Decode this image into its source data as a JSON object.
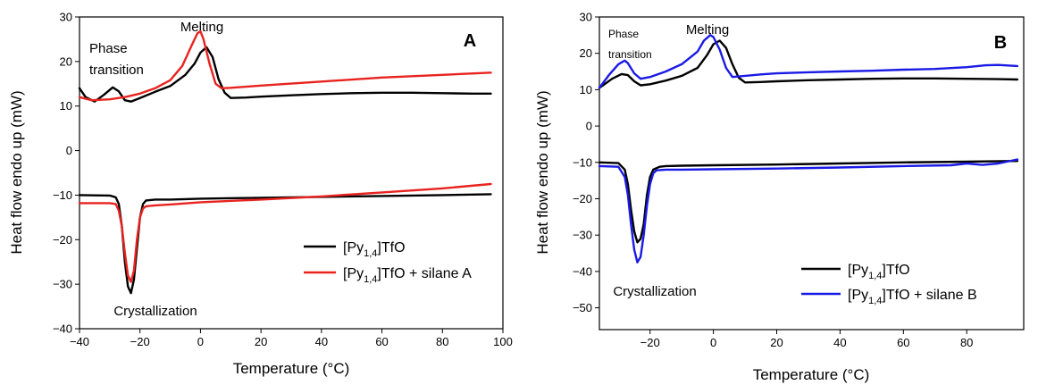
{
  "chart_data": [
    {
      "type": "line",
      "panel_label": "A",
      "xlabel": "Temperature (°C)",
      "ylabel": "Heat flow endo up (mW)",
      "xlim": [
        -40,
        100
      ],
      "ylim": [
        -40,
        30
      ],
      "xticks": [
        -40,
        -20,
        0,
        20,
        40,
        60,
        80,
        100
      ],
      "yticks": [
        -40,
        -30,
        -20,
        -10,
        0,
        10,
        20,
        30
      ],
      "annotations": [
        "Phase",
        "transition",
        "Melting",
        "Crystallization"
      ],
      "legend_position": "bottom-right",
      "series": [
        {
          "name": "[Py1,4]TfO",
          "legend_main": "[Py",
          "legend_sub": "1,4",
          "legend_rest": "]TfO",
          "color": "#000000",
          "segments": [
            {
              "x": [
                -40,
                -38,
                -35,
                -32,
                -29,
                -27,
                -25,
                -23,
                -20,
                -15,
                -10,
                -5,
                -2,
                0,
                2,
                4,
                6,
                8,
                10,
                15,
                20,
                30,
                40,
                50,
                60,
                70,
                80,
                90,
                96
              ],
              "y": [
                14,
                12,
                11,
                12.5,
                14.2,
                13.3,
                11.3,
                11,
                11.8,
                13.2,
                14.5,
                17,
                19.5,
                22,
                23.2,
                21,
                16,
                13,
                11.8,
                11.9,
                12.1,
                12.4,
                12.7,
                12.9,
                13,
                13,
                12.9,
                12.8,
                12.8
              ]
            },
            {
              "x": [
                -40,
                -30,
                -28,
                -27,
                -26,
                -25,
                -24,
                -23,
                -22,
                -21,
                -20,
                -19,
                -18,
                -15,
                -10,
                0,
                20,
                40,
                60,
                80,
                96
              ],
              "y": [
                -10,
                -10.1,
                -10.5,
                -12,
                -17,
                -25,
                -30.5,
                -32,
                -29,
                -22,
                -15,
                -12,
                -11.2,
                -11,
                -11,
                -10.8,
                -10.6,
                -10.4,
                -10.2,
                -10,
                -9.8
              ]
            }
          ]
        },
        {
          "name": "[Py1,4]TfO + silane A",
          "legend_main": "[Py",
          "legend_sub": "1,4",
          "legend_rest": "]TfO + silane A",
          "color": "#e8231f",
          "segments": [
            {
              "x": [
                -40,
                -36,
                -30,
                -25,
                -20,
                -15,
                -10,
                -6,
                -3,
                -1,
                0,
                1,
                3,
                5,
                7,
                10,
                20,
                40,
                60,
                80,
                96
              ],
              "y": [
                12,
                11.3,
                11.5,
                12,
                12.8,
                14,
                15.8,
                19,
                23.5,
                26.3,
                26.8,
                25,
                19.5,
                15,
                14,
                14.1,
                14.6,
                15.5,
                16.4,
                17,
                17.5
              ]
            },
            {
              "x": [
                -40,
                -30,
                -28,
                -27,
                -26,
                -25,
                -24,
                -23,
                -22,
                -21,
                -20,
                -19,
                -18,
                -15,
                -10,
                0,
                20,
                40,
                60,
                80,
                96
              ],
              "y": [
                -11.8,
                -11.8,
                -12,
                -13.5,
                -17,
                -23,
                -28,
                -29.5,
                -27,
                -20,
                -15,
                -13,
                -12.5,
                -12.3,
                -12.1,
                -11.6,
                -11,
                -10.3,
                -9.4,
                -8.5,
                -7.5
              ]
            }
          ]
        }
      ]
    },
    {
      "type": "line",
      "panel_label": "B",
      "xlabel": "Temperature (°C)",
      "ylabel": "Heat flow endo up (mW)",
      "xlim": [
        -36,
        98
      ],
      "ylim": [
        -56,
        30
      ],
      "xticks": [
        -20,
        0,
        20,
        40,
        60,
        80
      ],
      "yticks": [
        -50,
        -40,
        -30,
        -20,
        -10,
        0,
        10,
        20,
        30
      ],
      "annotations": [
        "Phase",
        "transition",
        "Melting",
        "Crystallization"
      ],
      "legend_position": "bottom-right",
      "series": [
        {
          "name": "[Py1,4]TfO",
          "legend_main": "[Py",
          "legend_sub": "1,4",
          "legend_rest": "]TfO",
          "color": "#000000",
          "segments": [
            {
              "x": [
                -36,
                -32,
                -29,
                -27,
                -25,
                -23,
                -20,
                -15,
                -10,
                -5,
                -2,
                0,
                2,
                4,
                6,
                8,
                10,
                15,
                20,
                30,
                40,
                50,
                60,
                70,
                80,
                90,
                96
              ],
              "y": [
                10.5,
                13,
                14.3,
                14,
                12.3,
                11.2,
                11.5,
                12.5,
                13.8,
                16,
                19.5,
                22.5,
                23.5,
                21.5,
                17,
                13.3,
                12,
                12.1,
                12.3,
                12.6,
                12.8,
                13,
                13.1,
                13.1,
                13,
                12.9,
                12.8
              ]
            },
            {
              "x": [
                -36,
                -30,
                -28,
                -27,
                -26,
                -25,
                -24,
                -23,
                -22,
                -21,
                -20,
                -19,
                -17,
                -15,
                -10,
                0,
                20,
                40,
                60,
                80,
                96
              ],
              "y": [
                -10,
                -10.2,
                -12,
                -16,
                -23,
                -29,
                -32,
                -31,
                -27,
                -19,
                -14,
                -12,
                -11.2,
                -11,
                -10.9,
                -10.8,
                -10.6,
                -10.3,
                -10,
                -9.8,
                -9.6
              ]
            }
          ]
        },
        {
          "name": "[Py1,4]TfO + silane B",
          "legend_main": "[Py",
          "legend_sub": "1,4",
          "legend_rest": "]TfO + silane B",
          "color": "#1a1ae6",
          "segments": [
            {
              "x": [
                -36,
                -33,
                -30,
                -28,
                -27,
                -25,
                -23,
                -20,
                -15,
                -10,
                -5,
                -3,
                -1,
                0,
                2,
                4,
                6,
                10,
                15,
                20,
                30,
                40,
                50,
                60,
                70,
                80,
                86,
                90,
                96
              ],
              "y": [
                10.5,
                14,
                17,
                18,
                17.3,
                14.5,
                13,
                13.5,
                15,
                17,
                20.5,
                23.5,
                25,
                24.5,
                21,
                16,
                13.5,
                13.8,
                14.2,
                14.5,
                14.8,
                15,
                15.2,
                15.5,
                15.7,
                16.2,
                16.7,
                16.8,
                16.5
              ]
            },
            {
              "x": [
                -36,
                -30,
                -28,
                -27,
                -26,
                -25,
                -24,
                -23,
                -22,
                -21,
                -20,
                -19,
                -18,
                -15,
                -10,
                0,
                20,
                40,
                60,
                75,
                80,
                85,
                90,
                96
              ],
              "y": [
                -11,
                -11.2,
                -14,
                -19,
                -27,
                -34,
                -37.5,
                -36,
                -30,
                -22,
                -16,
                -13,
                -12.2,
                -12,
                -12,
                -11.9,
                -11.7,
                -11.4,
                -11,
                -10.8,
                -10.3,
                -10.7,
                -10.3,
                -9.2
              ]
            }
          ]
        }
      ]
    }
  ]
}
